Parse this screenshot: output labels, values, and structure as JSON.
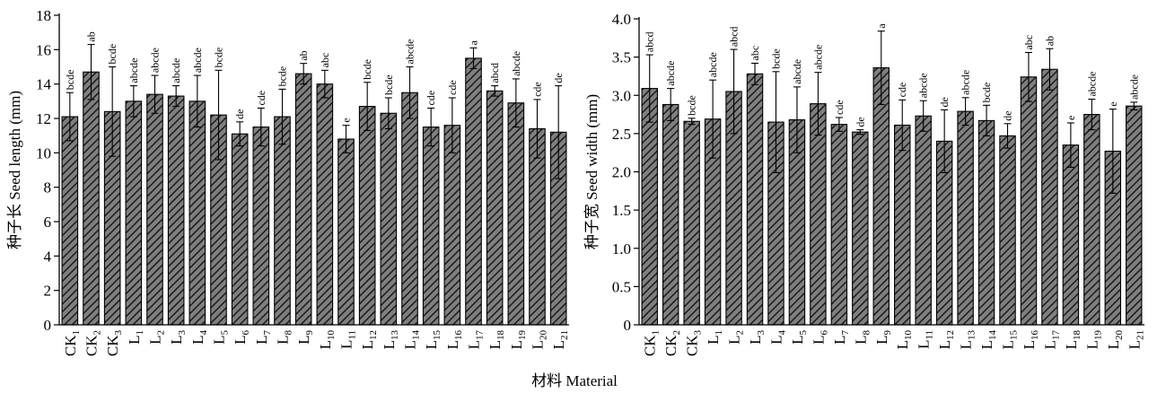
{
  "figure": {
    "xlabel": "材料 Material",
    "colors": {
      "bar_fill": "#7f7f7f",
      "hatch": "#1a1a1a",
      "axis": "#000000"
    }
  },
  "chart_data": [
    {
      "type": "bar",
      "ylabel": "种子长 Seed length (mm)",
      "ylim": [
        0,
        18
      ],
      "yticks": [
        0,
        2,
        4,
        6,
        8,
        10,
        12,
        14,
        16,
        18
      ],
      "yticks_text": [
        "0",
        "2",
        "4",
        "6",
        "8",
        "10",
        "12",
        "14",
        "16",
        "18"
      ],
      "grid": false,
      "categories": [
        "CK",
        "CK",
        "CK",
        "L",
        "L",
        "L",
        "L",
        "L",
        "L",
        "L",
        "L",
        "L",
        "L",
        "L",
        "L",
        "L",
        "L",
        "L",
        "L",
        "L",
        "L",
        "L",
        "L",
        "L"
      ],
      "subscripts": [
        "1",
        "2",
        "3",
        "1",
        "2",
        "3",
        "4",
        "5",
        "6",
        "7",
        "8",
        "9",
        "10",
        "11",
        "12",
        "13",
        "14",
        "15",
        "16",
        "17",
        "18",
        "19",
        "20",
        "21"
      ],
      "values": [
        12.1,
        14.7,
        12.4,
        13.0,
        13.4,
        13.3,
        13.0,
        12.2,
        11.1,
        11.5,
        12.1,
        14.6,
        14.0,
        10.8,
        12.7,
        12.3,
        13.5,
        11.5,
        11.6,
        15.5,
        13.6,
        12.9,
        11.4,
        11.2
      ],
      "errors": [
        1.4,
        1.6,
        2.6,
        0.9,
        1.1,
        0.6,
        1.5,
        2.6,
        0.7,
        1.1,
        1.6,
        0.6,
        0.8,
        0.8,
        1.4,
        0.9,
        1.5,
        1.1,
        1.6,
        0.6,
        0.3,
        1.4,
        1.7,
        2.7
      ],
      "labels": [
        "bcde",
        "ab",
        "bcde",
        "abcde",
        "abcde",
        "abcde",
        "abcde",
        "bcde",
        "de",
        "cde",
        "bcde",
        "ab",
        "abc",
        "e",
        "bcde",
        "bcde",
        "abcde",
        "cde",
        "cde",
        "a",
        "abcd",
        "abcde",
        "cde",
        "de"
      ]
    },
    {
      "type": "bar",
      "ylabel": "种子宽 Seed width (mm)",
      "ylim": [
        0,
        4.0
      ],
      "yticks": [
        0,
        0.5,
        1.0,
        1.5,
        2.0,
        2.5,
        3.0,
        3.5,
        4.0
      ],
      "yticks_text": [
        "0",
        "0.5",
        "1.0",
        "1.5",
        "2.0",
        "2.5",
        "3.0",
        "3.5",
        "4.0"
      ],
      "grid": false,
      "categories": [
        "CK",
        "CK",
        "CK",
        "L",
        "L",
        "L",
        "L",
        "L",
        "L",
        "L",
        "L",
        "L",
        "L",
        "L",
        "L",
        "L",
        "L",
        "L",
        "L",
        "L",
        "L",
        "L",
        "L",
        "L"
      ],
      "subscripts": [
        "1",
        "2",
        "3",
        "1",
        "2",
        "3",
        "4",
        "5",
        "6",
        "7",
        "8",
        "9",
        "10",
        "11",
        "12",
        "13",
        "14",
        "15",
        "16",
        "17",
        "18",
        "19",
        "20",
        "21"
      ],
      "values": [
        3.09,
        2.88,
        2.66,
        2.69,
        3.05,
        3.28,
        2.65,
        2.68,
        2.89,
        2.62,
        2.52,
        3.36,
        2.61,
        2.73,
        2.4,
        2.79,
        2.67,
        2.47,
        3.24,
        3.34,
        2.35,
        2.75,
        2.27,
        2.86
      ],
      "errors": [
        0.44,
        0.21,
        0.04,
        0.51,
        0.55,
        0.14,
        0.66,
        0.43,
        0.41,
        0.09,
        0.03,
        0.48,
        0.33,
        0.2,
        0.41,
        0.18,
        0.2,
        0.16,
        0.32,
        0.27,
        0.29,
        0.2,
        0.55,
        0.05
      ],
      "labels": [
        "abcd",
        "abcde",
        "bcde",
        "abcde",
        "abcd",
        "abc",
        "bcde",
        "abcde",
        "abcde",
        "cde",
        "de",
        "a",
        "cde",
        "abcde",
        "de",
        "abcde",
        "bcde",
        "de",
        "abc",
        "ab",
        "e",
        "abcde",
        "e",
        "abcde"
      ]
    }
  ]
}
